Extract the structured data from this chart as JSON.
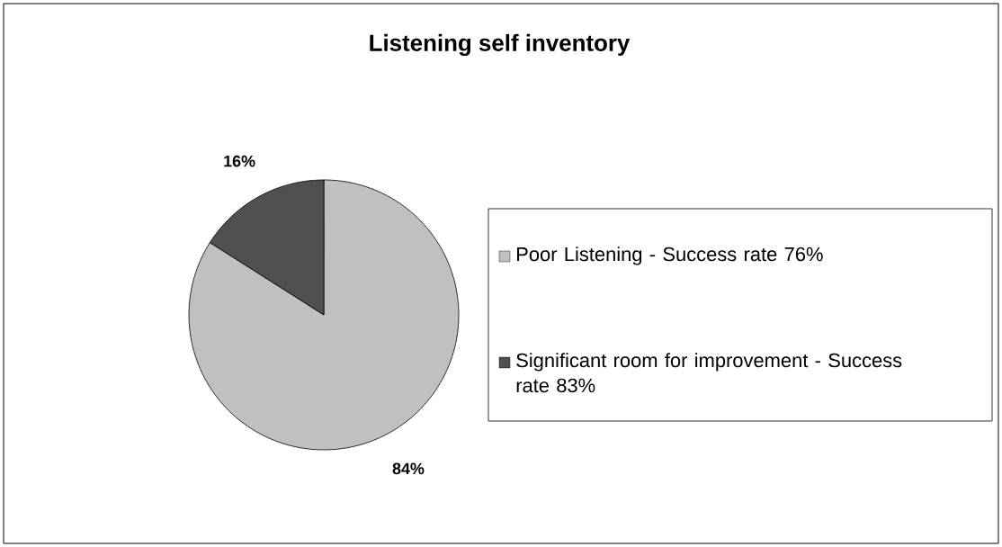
{
  "chart_data": {
    "type": "pie",
    "title": "Listening self inventory",
    "categories": [
      "Poor Listening - Success rate 76%",
      "Significant room for improvement - Success rate 83%"
    ],
    "values": [
      84,
      16
    ],
    "colors": [
      "#c0c0c0",
      "#505050"
    ],
    "value_labels": [
      "84%",
      "16%"
    ],
    "legend": "right"
  }
}
